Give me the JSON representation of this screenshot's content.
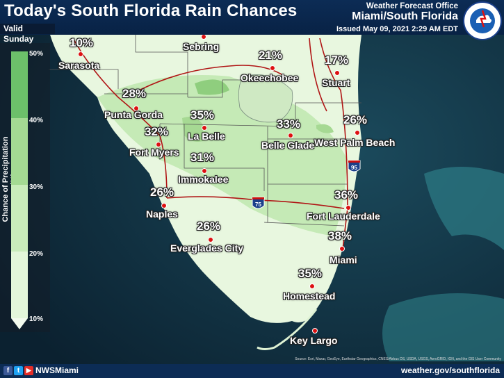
{
  "header": {
    "title": "Today's South Florida Rain Chances",
    "valid": "Valid Sunday",
    "office_label": "Weather Forecast Office",
    "office_name": "Miami/South Florida",
    "issued": "Issued May 09, 2021 2:29 AM EDT",
    "logo_text": "NATIONAL WEATHER SERVICE"
  },
  "legend": {
    "title": "Chance of Precipitation (%)",
    "ticks": [
      "50%",
      "40%",
      "30%",
      "20%",
      "10%"
    ],
    "colors": [
      "#6cc06a",
      "#a4da93",
      "#c9ecbb",
      "#e3f6da",
      "#f3fbee"
    ]
  },
  "cities": [
    {
      "name": "Sarasota",
      "pct": "10%"
    },
    {
      "name": "Sebring",
      "pct": ""
    },
    {
      "name": "Okeechobee",
      "pct": "21%"
    },
    {
      "name": "Stuart",
      "pct": "17%"
    },
    {
      "name": "Punta Gorda",
      "pct": "28%"
    },
    {
      "name": "La Belle",
      "pct": "35%"
    },
    {
      "name": "Fort Myers",
      "pct": "32%"
    },
    {
      "name": "Belle Glade",
      "pct": "33%"
    },
    {
      "name": "West Palm Beach",
      "pct": "26%"
    },
    {
      "name": "Immokalee",
      "pct": "31%"
    },
    {
      "name": "Naples",
      "pct": "26%"
    },
    {
      "name": "Fort Lauderdale",
      "pct": "36%"
    },
    {
      "name": "Everglades City",
      "pct": "26%"
    },
    {
      "name": "Miami",
      "pct": "38%"
    },
    {
      "name": "Homestead",
      "pct": "35%"
    },
    {
      "name": "Key Largo",
      "pct": ""
    }
  ],
  "shields": {
    "i75": "75",
    "i95": "95"
  },
  "footer": {
    "handle": "NWSMiami",
    "website": "weather.gov/southflorida",
    "credits": "Source: Esri, Maxar, GeoEye, Earthstar Geographics, CNES/Airbus DS, USDA, USGS, AeroGRID, IGN, and the GIS User Community",
    "social_icons": [
      "facebook-icon",
      "twitter-icon",
      "youtube-icon"
    ]
  },
  "colors": {
    "header": "#0c2c55",
    "dot": "#dd1111",
    "ocean": "#0f2a3a"
  }
}
